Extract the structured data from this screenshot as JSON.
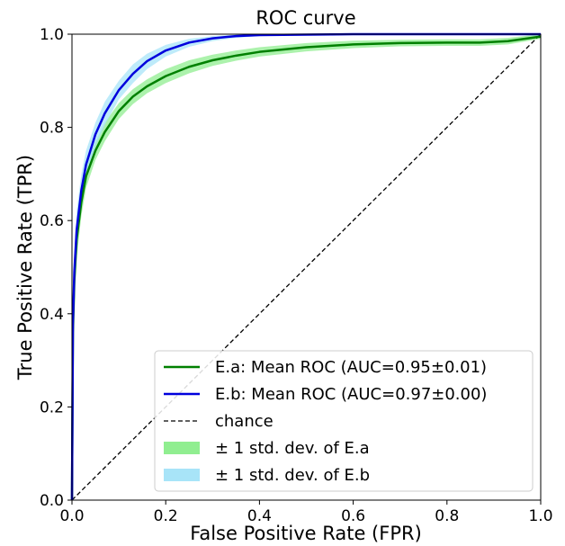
{
  "chart_data": {
    "type": "line",
    "title": "ROC curve",
    "xlabel": "False Positive Rate (FPR)",
    "ylabel": "True Positive Rate (TPR)",
    "xlim": [
      0.0,
      1.0
    ],
    "ylim": [
      0.0,
      1.0
    ],
    "xticks": [
      "0.0",
      "0.2",
      "0.4",
      "0.6",
      "0.8",
      "1.0"
    ],
    "yticks": [
      "0.0",
      "0.2",
      "0.4",
      "0.6",
      "0.8",
      "1.0"
    ],
    "grid": false,
    "legend_position": "lower-right",
    "series": [
      {
        "name": "E.a: Mean ROC (AUC=0.95±0.01)",
        "color": "#008000",
        "band_name": "± 1 std. dev. of E.a",
        "band_color": "#90ee90",
        "x": [
          0.0,
          0.002,
          0.005,
          0.01,
          0.02,
          0.03,
          0.05,
          0.07,
          0.1,
          0.13,
          0.16,
          0.2,
          0.25,
          0.3,
          0.35,
          0.4,
          0.5,
          0.6,
          0.7,
          0.8,
          0.87,
          0.93,
          1.0
        ],
        "y": [
          0.0,
          0.36,
          0.47,
          0.56,
          0.64,
          0.695,
          0.75,
          0.79,
          0.835,
          0.866,
          0.888,
          0.91,
          0.93,
          0.944,
          0.954,
          0.962,
          0.972,
          0.978,
          0.981,
          0.982,
          0.982,
          0.985,
          0.995
        ],
        "upper": [
          0.0,
          0.4,
          0.51,
          0.6,
          0.67,
          0.72,
          0.77,
          0.81,
          0.852,
          0.882,
          0.903,
          0.925,
          0.944,
          0.956,
          0.965,
          0.972,
          0.981,
          0.986,
          0.988,
          0.989,
          0.989,
          0.992,
          1.0
        ],
        "lower": [
          0.0,
          0.32,
          0.43,
          0.52,
          0.61,
          0.67,
          0.73,
          0.77,
          0.818,
          0.85,
          0.873,
          0.895,
          0.916,
          0.932,
          0.943,
          0.952,
          0.963,
          0.97,
          0.974,
          0.975,
          0.975,
          0.978,
          0.99
        ]
      },
      {
        "name": "E.b: Mean ROC (AUC=0.97±0.00)",
        "color": "#0000dd",
        "band_name": "± 1 std. dev. of E.b",
        "band_color": "#a8e4f8",
        "x": [
          0.0,
          0.002,
          0.005,
          0.01,
          0.02,
          0.03,
          0.05,
          0.07,
          0.1,
          0.13,
          0.16,
          0.2,
          0.25,
          0.3,
          0.35,
          0.4,
          0.5,
          0.6,
          0.7,
          0.8,
          0.9,
          1.0
        ],
        "y": [
          0.0,
          0.38,
          0.49,
          0.58,
          0.665,
          0.72,
          0.785,
          0.83,
          0.88,
          0.915,
          0.942,
          0.965,
          0.982,
          0.991,
          0.996,
          0.998,
          0.999,
          1.0,
          1.0,
          1.0,
          1.0,
          1.0
        ],
        "upper": [
          0.0,
          0.42,
          0.53,
          0.62,
          0.7,
          0.75,
          0.81,
          0.855,
          0.9,
          0.935,
          0.958,
          0.977,
          0.99,
          0.996,
          0.999,
          1.0,
          1.0,
          1.0,
          1.0,
          1.0,
          1.0,
          1.0
        ],
        "lower": [
          0.0,
          0.34,
          0.45,
          0.54,
          0.63,
          0.69,
          0.76,
          0.805,
          0.86,
          0.895,
          0.925,
          0.952,
          0.973,
          0.985,
          0.992,
          0.996,
          0.998,
          0.999,
          1.0,
          1.0,
          1.0,
          1.0
        ]
      }
    ],
    "reference_line": {
      "name": "chance",
      "color": "#000000",
      "style": "dashed",
      "x": [
        0.0,
        1.0
      ],
      "y": [
        0.0,
        1.0
      ]
    }
  }
}
